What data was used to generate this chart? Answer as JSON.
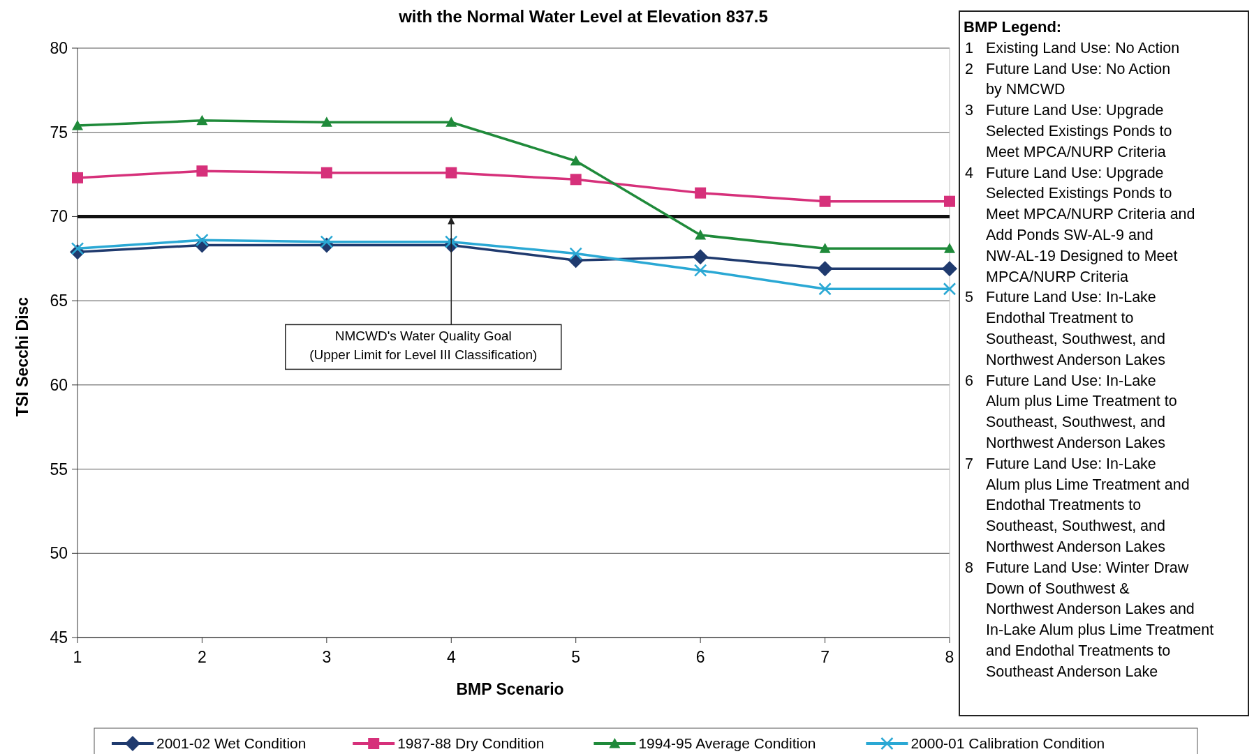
{
  "chart_data": {
    "type": "line",
    "title": "with the Normal Water Level at Elevation 837.5",
    "xlabel": "BMP Scenario",
    "ylabel": "TSI Secchi Disc",
    "x": [
      1,
      2,
      3,
      4,
      5,
      6,
      7,
      8
    ],
    "xlim": [
      1,
      8
    ],
    "xticks": [
      1,
      2,
      3,
      4,
      5,
      6,
      7,
      8
    ],
    "ylim": [
      45,
      80
    ],
    "yticks": [
      45,
      50,
      55,
      60,
      65,
      70,
      75,
      80
    ],
    "grid": "y",
    "legend": "bottom",
    "series": [
      {
        "name": "2001-02 Wet Condition",
        "color": "#1f3a6e",
        "marker": "diamond",
        "values": [
          67.9,
          68.3,
          68.3,
          68.3,
          67.4,
          67.6,
          66.9,
          66.9
        ]
      },
      {
        "name": "1987-88 Dry Condition",
        "color": "#d6307a",
        "marker": "square",
        "values": [
          72.3,
          72.7,
          72.6,
          72.6,
          72.2,
          71.4,
          70.9,
          70.9
        ]
      },
      {
        "name": "1994-95 Average Condition",
        "color": "#1f8a3a",
        "marker": "triangle",
        "values": [
          75.4,
          75.7,
          75.6,
          75.6,
          73.3,
          68.9,
          68.1,
          68.1
        ]
      },
      {
        "name": "2000-01 Calibration Condition",
        "color": "#2aa8d4",
        "marker": "cross",
        "values": [
          68.1,
          68.6,
          68.5,
          68.5,
          67.8,
          66.8,
          65.7,
          65.7
        ]
      }
    ],
    "ref_lines": [
      {
        "axis": "y",
        "value": 70,
        "color": "#111111"
      }
    ],
    "annotations": [
      {
        "text": "NMCWD's Water Quality Goal\n(Upper Limit for Level III Classification)",
        "x": 4,
        "y": 70
      },
      "BMP Legend:\n1 Existing Land Use: No Action\n2 Future Land Use: No Action\nby NMCWD\n3 Future Land Use: Upgrade\nSelected Existings Ponds to\nMeet MPCA/NURP  Criteria\n4 Future Land Use: Upgrade\nSelected Existings Ponds to\nMeet MPCA/NURP  Criteria and\nAdd Ponds SW-AL-9 and\nNW-AL-19 Designed to Meet\nMPCA/NURP Criteria\n5 Future Land Use: In-Lake\nEndothal Treatment to\nSoutheast, Southwest, and\nNorthwest Anderson Lakes\n6 Future Land Use: In-Lake\nAlum plus Lime Treatment to\nSoutheast, Southwest, and\nNorthwest Anderson Lakes\n7 Future Land Use: In-Lake\nAlum plus Lime Treatment and\nEndothal Treatments to\nSoutheast, Southwest, and\nNorthwest Anderson Lakes\n8 Future Land Use: Winter Draw\nDown of Southwest &\nNorthwest Anderson Lakes and\nIn-Lake Alum plus Lime Treatment\nand Endothal Treatments to\nSoutheast Anderson Lake"
    ]
  }
}
